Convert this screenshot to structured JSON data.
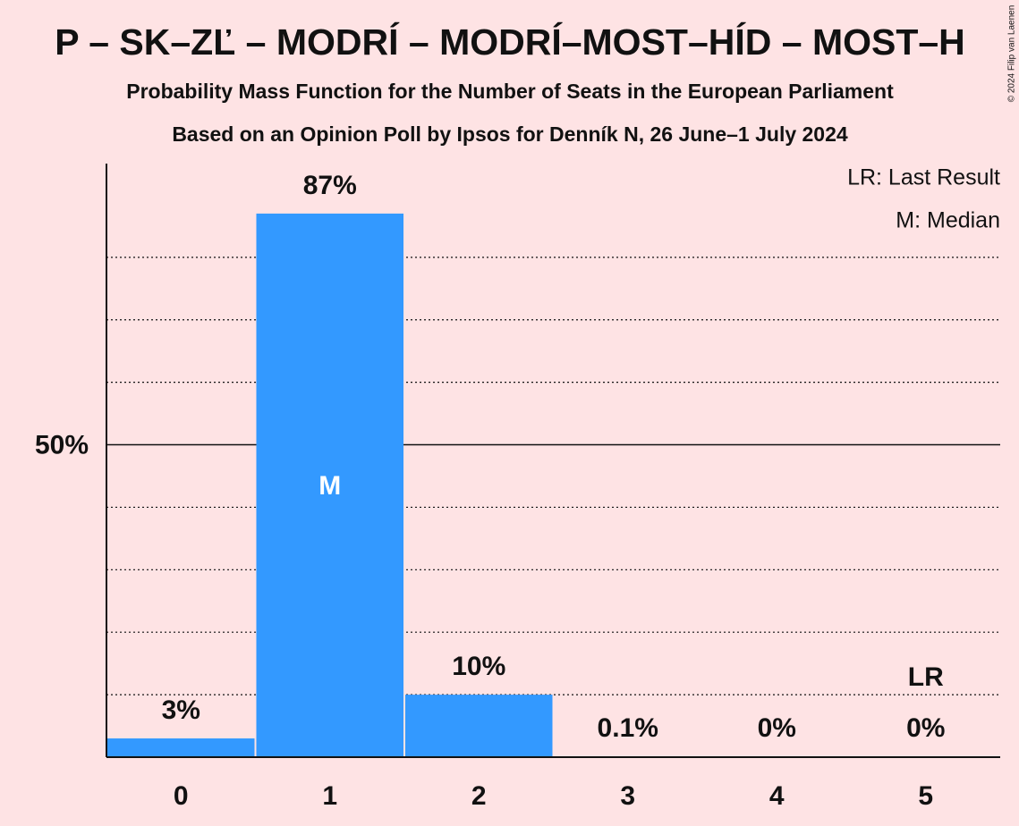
{
  "chart_data": {
    "type": "bar",
    "title": "P – SK–ZĽ – MODRÍ – MODRÍ–MOST–HÍD – MOST–H",
    "subtitle": "Probability Mass Function for the Number of Seats in the European Parliament",
    "subtitle2": "Based on an Opinion Poll by Ipsos for Denník N, 26 June–1 July 2024",
    "copyright": "© 2024 Filip van Laenen",
    "categories": [
      "0",
      "1",
      "2",
      "3",
      "4",
      "5"
    ],
    "values": [
      3,
      87,
      10,
      0.1,
      0,
      0
    ],
    "value_labels": [
      "3%",
      "87%",
      "10%",
      "0.1%",
      "0%",
      "0%"
    ],
    "color": "#3399ff",
    "ylim": [
      0,
      95
    ],
    "yticks": [
      {
        "value": 50,
        "label": "50%"
      }
    ],
    "minor_yticks": [
      10,
      20,
      30,
      40,
      60,
      70,
      80
    ],
    "grid": true,
    "median_index": 1,
    "median_label": "M",
    "last_result_index": 5,
    "last_result_label": "LR",
    "legend": [
      "LR: Last Result",
      "M: Median"
    ]
  }
}
